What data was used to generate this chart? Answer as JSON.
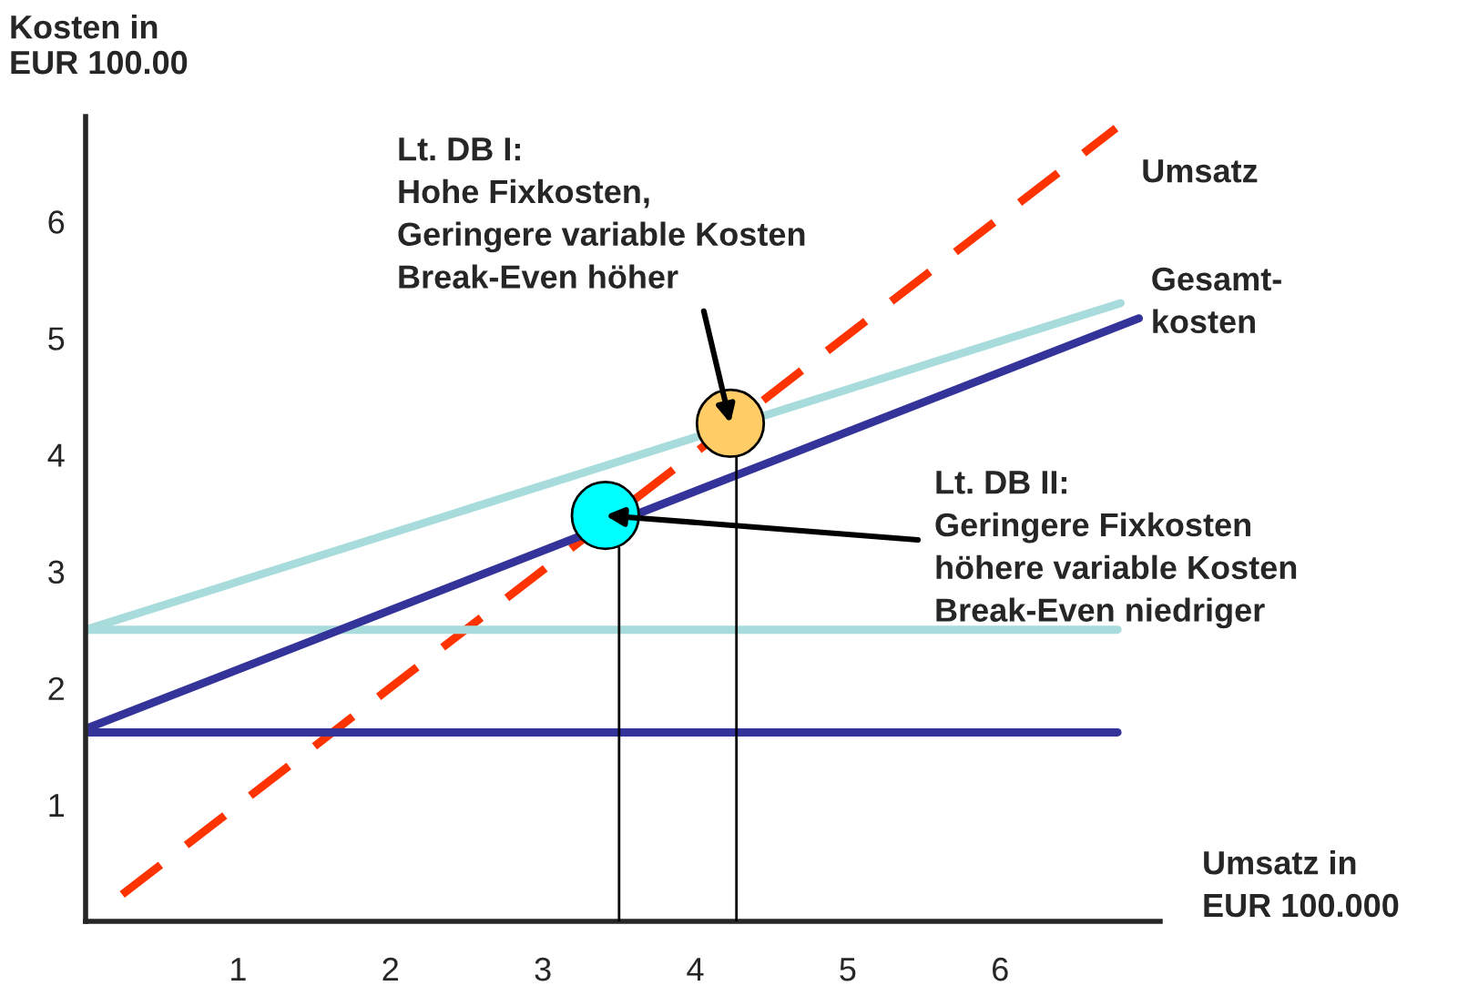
{
  "chart_data": {
    "type": "line",
    "ylabel": "Kosten in\nEUR 100.00",
    "xlabel": "Umsatz in\nEUR 100.000",
    "xlim": [
      0,
      7.05
    ],
    "ylim": [
      0,
      6.9
    ],
    "xticks": [
      1,
      2,
      3,
      4,
      5,
      6
    ],
    "yticks": [
      1,
      2,
      3,
      4,
      5,
      6
    ],
    "grid": false,
    "legend": false,
    "series": [
      {
        "name": "Umsatz",
        "color": "#ff3300",
        "line_style": "dashed",
        "x": [
          0.24,
          6.76
        ],
        "values": [
          0.23,
          6.8
        ]
      },
      {
        "color": "#a8dcdc",
        "x": [
          0,
          6.77
        ],
        "values": [
          2.5,
          2.5
        ]
      },
      {
        "color": "#a8dcdc",
        "x": [
          0,
          6.79
        ],
        "values": [
          2.5,
          5.3
        ]
      },
      {
        "color": "#333399",
        "x": [
          0,
          6.77
        ],
        "values": [
          1.62,
          1.62
        ]
      },
      {
        "color": "#333399",
        "x": [
          0,
          6.91
        ],
        "values": [
          1.65,
          5.17
        ]
      },
      {
        "color": "#000000",
        "x": [
          4.27,
          4.27
        ],
        "values": [
          0,
          3.98
        ]
      },
      {
        "color": "#000000",
        "x": [
          3.5,
          3.5
        ],
        "values": [
          0,
          3.2
        ]
      },
      {
        "type": "scatter",
        "color": "#ffcc66",
        "x": [
          4.23
        ],
        "values": [
          4.27
        ]
      },
      {
        "type": "scatter",
        "color": "#00ffff",
        "x": [
          3.41
        ],
        "values": [
          3.48
        ]
      }
    ],
    "annotations": [
      {
        "text": "Lt. DB I:\nHohe Fixkosten,\nGeringere variable Kosten\nBreak-Even höher",
        "x": 4.23,
        "y": 4.27
      },
      {
        "text": "Lt. DB II:\nGeringere Fixkosten\nhöhere variable Kosten\nBreak-Even niedriger",
        "x": 3.41,
        "y": 3.48
      },
      {
        "text": "Gesamt-\nkosten",
        "x": 6.79,
        "y": 5.3
      }
    ]
  }
}
